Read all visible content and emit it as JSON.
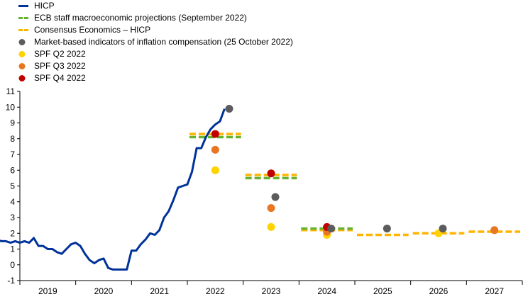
{
  "chart_data": {
    "type": "line",
    "legend": [
      {
        "name": "HICP",
        "marker": "line",
        "color": "#003299"
      },
      {
        "name": "ECB staff macroeconomic projections (September 2022)",
        "marker": "dash",
        "color": "#65B32E"
      },
      {
        "name": "Consensus Economics – HICP",
        "marker": "dash",
        "color": "#FFB400"
      },
      {
        "name": "Market-based indicators of inflation compensation (25 October 2022)",
        "marker": "dot",
        "color": "#5C5C5C"
      },
      {
        "name": "SPF Q2 2022",
        "marker": "dot",
        "color": "#FFD200"
      },
      {
        "name": "SPF Q3 2022",
        "marker": "dot",
        "color": "#E87722"
      },
      {
        "name": "SPF Q4 2022",
        "marker": "dot",
        "color": "#C00000"
      }
    ],
    "x_categories": [
      "2019",
      "2020",
      "2021",
      "2022",
      "2023",
      "2024",
      "2025",
      "2026",
      "2027"
    ],
    "ylim": [
      -1,
      11
    ],
    "yticks": [
      -1,
      0,
      1,
      2,
      3,
      4,
      5,
      6,
      7,
      8,
      9,
      10,
      11
    ],
    "grid": false,
    "legend_position": "top-left",
    "hicp": {
      "x_start": 2018.583,
      "step": 0.08333,
      "values": [
        1.6,
        1.5,
        1.5,
        1.4,
        1.5,
        1.4,
        1.5,
        1.4,
        1.7,
        1.2,
        1.2,
        1.0,
        1.0,
        0.8,
        0.7,
        1.0,
        1.3,
        1.4,
        1.2,
        0.7,
        0.3,
        0.1,
        0.3,
        0.4,
        -0.2,
        -0.3,
        -0.3,
        -0.3,
        -0.3,
        0.9,
        0.9,
        1.3,
        1.6,
        2.0,
        1.9,
        2.2,
        3.0,
        3.4,
        4.1,
        4.9,
        5.0,
        5.1,
        5.9,
        7.4,
        7.4,
        8.1,
        8.6,
        8.9,
        9.1,
        9.9
      ]
    },
    "ecb_projections": [
      {
        "year": "2022",
        "value": 8.1
      },
      {
        "year": "2023",
        "value": 5.5
      },
      {
        "year": "2024",
        "value": 2.3
      }
    ],
    "consensus_economics": [
      {
        "year": "2022",
        "value": 8.3
      },
      {
        "year": "2023",
        "value": 5.7
      },
      {
        "year": "2024",
        "value": 2.2
      },
      {
        "year": "2025",
        "value": 1.9
      },
      {
        "year": "2026",
        "value": 2.0
      },
      {
        "year": "2027",
        "value": 2.1
      }
    ],
    "market_based": [
      {
        "x": 2022.25,
        "value": 9.9
      },
      {
        "x": 2023.0,
        "value": 4.3
      },
      {
        "x": 2024.0,
        "value": 2.3
      },
      {
        "x": 2025.0,
        "value": 2.3
      },
      {
        "x": 2026.0,
        "value": 2.3
      }
    ],
    "spf_q2": [
      {
        "x": 2022.0,
        "value": 6.0
      },
      {
        "x": 2023.0,
        "value": 2.4
      },
      {
        "x": 2024.0,
        "value": 1.9
      },
      {
        "x": 2026.0,
        "value": 2.0
      }
    ],
    "spf_q3": [
      {
        "x": 2022.0,
        "value": 7.3
      },
      {
        "x": 2023.0,
        "value": 3.6
      },
      {
        "x": 2024.0,
        "value": 2.1
      },
      {
        "x": 2027.0,
        "value": 2.2
      }
    ],
    "spf_q4": [
      {
        "x": 2022.0,
        "value": 8.3
      },
      {
        "x": 2023.0,
        "value": 5.8
      },
      {
        "x": 2024.0,
        "value": 2.4
      }
    ]
  }
}
